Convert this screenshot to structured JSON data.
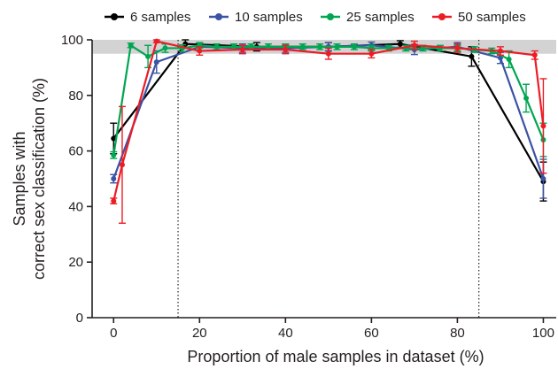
{
  "chart_data": {
    "type": "line",
    "title": "",
    "xlabel": "Proportion of male samples in dataset (%)",
    "ylabel_lines": [
      "Samples with",
      "correct sex classification (%)"
    ],
    "xlim": [
      -5,
      103
    ],
    "ylim": [
      0,
      100
    ],
    "xticks": [
      0,
      20,
      40,
      60,
      80,
      100
    ],
    "yticks": [
      0,
      20,
      40,
      60,
      80,
      100
    ],
    "shaded_band": {
      "y_from": 95,
      "y_to": 100,
      "color": "#d3d3d3"
    },
    "reference_lines_x": [
      15,
      85
    ],
    "legend_position": "top",
    "series": [
      {
        "name": "6 samples",
        "color": "#000000",
        "x": [
          0,
          16.7,
          33.3,
          50,
          66.7,
          83.3,
          100
        ],
        "y": [
          64.5,
          98.5,
          97.5,
          97.5,
          98.5,
          94,
          49
        ],
        "err": [
          5.5,
          1.5,
          1.5,
          1.5,
          1.2,
          3.5,
          7
        ]
      },
      {
        "name": "10 samples",
        "color": "#3a53a4",
        "x": [
          0,
          10,
          20,
          30,
          40,
          50,
          60,
          70,
          80,
          90,
          100
        ],
        "y": [
          50,
          92,
          97.5,
          97,
          97,
          97.5,
          98,
          96.5,
          97.5,
          93.5,
          50
        ],
        "err": [
          1.5,
          4,
          1.5,
          1.5,
          1.5,
          1.5,
          1.2,
          1.8,
          1.5,
          2,
          7
        ]
      },
      {
        "name": "25 samples",
        "color": "#00a651",
        "x": [
          0,
          4,
          8,
          12,
          16,
          20,
          24,
          28,
          32,
          36,
          40,
          44,
          48,
          52,
          56,
          60,
          64,
          68,
          72,
          76,
          80,
          84,
          88,
          92,
          96,
          100
        ],
        "y": [
          58.5,
          98,
          94,
          97,
          97,
          98,
          97.5,
          97.5,
          97.5,
          97.5,
          97.5,
          97.5,
          97.5,
          97.5,
          97.5,
          97,
          97,
          97,
          97,
          97,
          97,
          96.5,
          96,
          93,
          79,
          64
        ],
        "err": [
          1.2,
          0.8,
          4,
          1.5,
          1.2,
          1,
          1,
          1,
          1,
          1,
          1,
          1,
          1,
          1,
          1,
          1,
          1,
          1,
          1,
          1,
          1,
          1,
          1,
          3,
          5,
          6
        ]
      },
      {
        "name": "50 samples",
        "color": "#ed1c24",
        "x": [
          0,
          2,
          10,
          20,
          30,
          40,
          50,
          60,
          70,
          80,
          90,
          98,
          100
        ],
        "y": [
          42,
          55,
          99.5,
          96,
          96.5,
          96.5,
          95,
          95,
          98,
          97,
          96,
          94.5,
          69
        ],
        "err": [
          1,
          21,
          0.5,
          1.5,
          1.5,
          1.5,
          2,
          1.5,
          1.5,
          1.5,
          1.5,
          1.5,
          17
        ]
      }
    ]
  }
}
